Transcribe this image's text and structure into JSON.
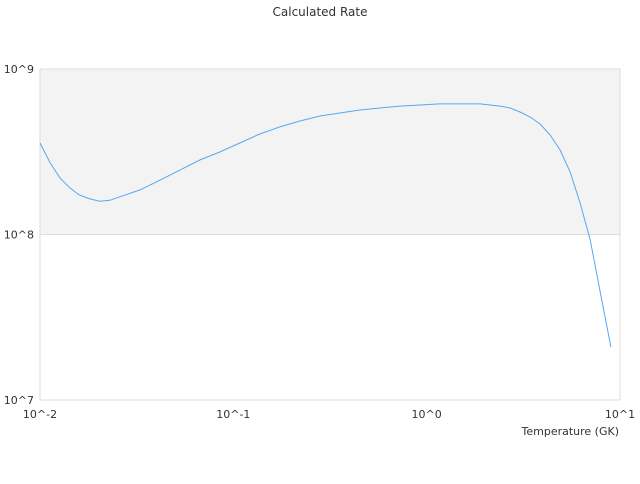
{
  "chart_data": {
    "type": "line",
    "title": "Calculated Rate",
    "xlabel": "Temperature (GK)",
    "ylabel": "",
    "x_scale": "log",
    "y_scale": "log",
    "xlim": [
      0.01,
      10
    ],
    "ylim": [
      10000000,
      1000000000
    ],
    "x_ticks": [
      0.01,
      0.1,
      1,
      10
    ],
    "x_tick_labels": [
      "10^-2",
      "10^-1",
      "10^0",
      "10^1"
    ],
    "y_ticks": [
      10000000,
      100000000,
      1000000000
    ],
    "y_tick_labels": [
      "10^7",
      "10^8",
      "10^9"
    ],
    "grid": false,
    "band_colors": [
      "#f3f3f3",
      "#ffffff"
    ],
    "line_color": "#5aa6f0",
    "series": [
      {
        "x": [
          0.01,
          0.0113,
          0.0127,
          0.0143,
          0.016,
          0.0181,
          0.0204,
          0.023,
          0.0259,
          0.0329,
          0.0417,
          0.0529,
          0.0671,
          0.0851,
          0.108,
          0.137,
          0.174,
          0.221,
          0.281,
          0.356,
          0.452,
          0.574,
          0.728,
          0.924,
          1.17,
          1.49,
          1.89,
          2.4,
          2.7,
          3.04,
          3.43,
          3.86,
          4.35,
          4.9,
          5.52,
          6.22,
          7.01,
          7.9,
          8.97
        ],
        "y": [
          357000000.0,
          270000000.0,
          219000000.0,
          191000000.0,
          173000000.0,
          164000000.0,
          159000000.0,
          161000000.0,
          169000000.0,
          186000000.0,
          213000000.0,
          245000000.0,
          282000000.0,
          315000000.0,
          357000000.0,
          405000000.0,
          447000000.0,
          485000000.0,
          520000000.0,
          542000000.0,
          565000000.0,
          581000000.0,
          597000000.0,
          606000000.0,
          615000000.0,
          615000000.0,
          615000000.0,
          597000000.0,
          581000000.0,
          550000000.0,
          513000000.0,
          465000000.0,
          399000000.0,
          324000000.0,
          239000000.0,
          155000000.0,
          92700000.0,
          45000000.0,
          20900000.0
        ]
      }
    ]
  }
}
